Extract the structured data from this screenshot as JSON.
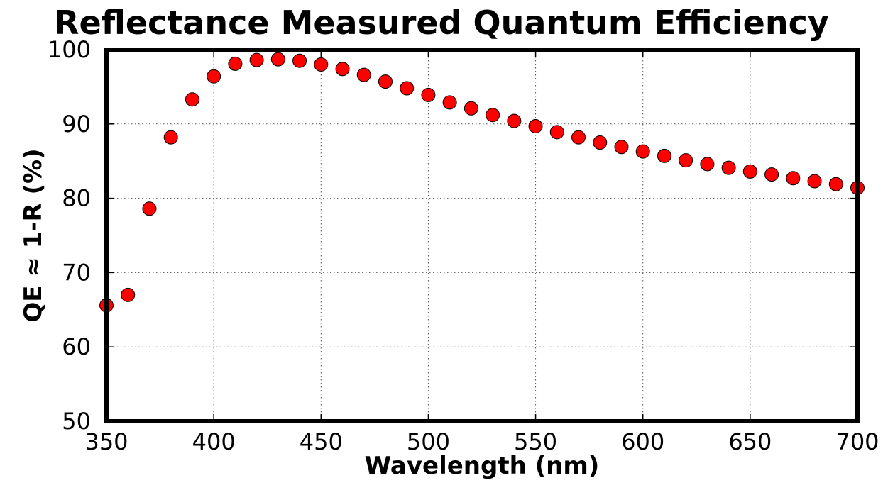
{
  "chart_data": {
    "type": "scatter",
    "title": "Reflectance Measured Quantum Efficiency",
    "xlabel": "Wavelength (nm)",
    "ylabel": "QE ≈ 1-R (%)",
    "xlim": [
      350,
      700
    ],
    "ylim": [
      50,
      100
    ],
    "xticks": [
      350,
      400,
      450,
      500,
      550,
      600,
      650,
      700
    ],
    "yticks": [
      50,
      60,
      70,
      80,
      90,
      100
    ],
    "grid": true,
    "series": [
      {
        "name": "QE",
        "color": "#ff0000",
        "x": [
          350,
          360,
          370,
          380,
          390,
          400,
          410,
          420,
          430,
          440,
          450,
          460,
          470,
          480,
          490,
          500,
          510,
          520,
          530,
          540,
          550,
          560,
          570,
          580,
          590,
          600,
          610,
          620,
          630,
          640,
          650,
          660,
          670,
          680,
          690,
          700
        ],
        "y": [
          65.6,
          67.0,
          78.6,
          88.2,
          93.3,
          96.4,
          98.1,
          98.6,
          98.7,
          98.5,
          98.0,
          97.4,
          96.6,
          95.7,
          94.8,
          93.9,
          92.9,
          92.1,
          91.2,
          90.4,
          89.7,
          88.9,
          88.2,
          87.5,
          86.9,
          86.3,
          85.7,
          85.1,
          84.6,
          84.1,
          83.6,
          83.2,
          82.7,
          82.3,
          81.9,
          81.4
        ]
      }
    ]
  }
}
